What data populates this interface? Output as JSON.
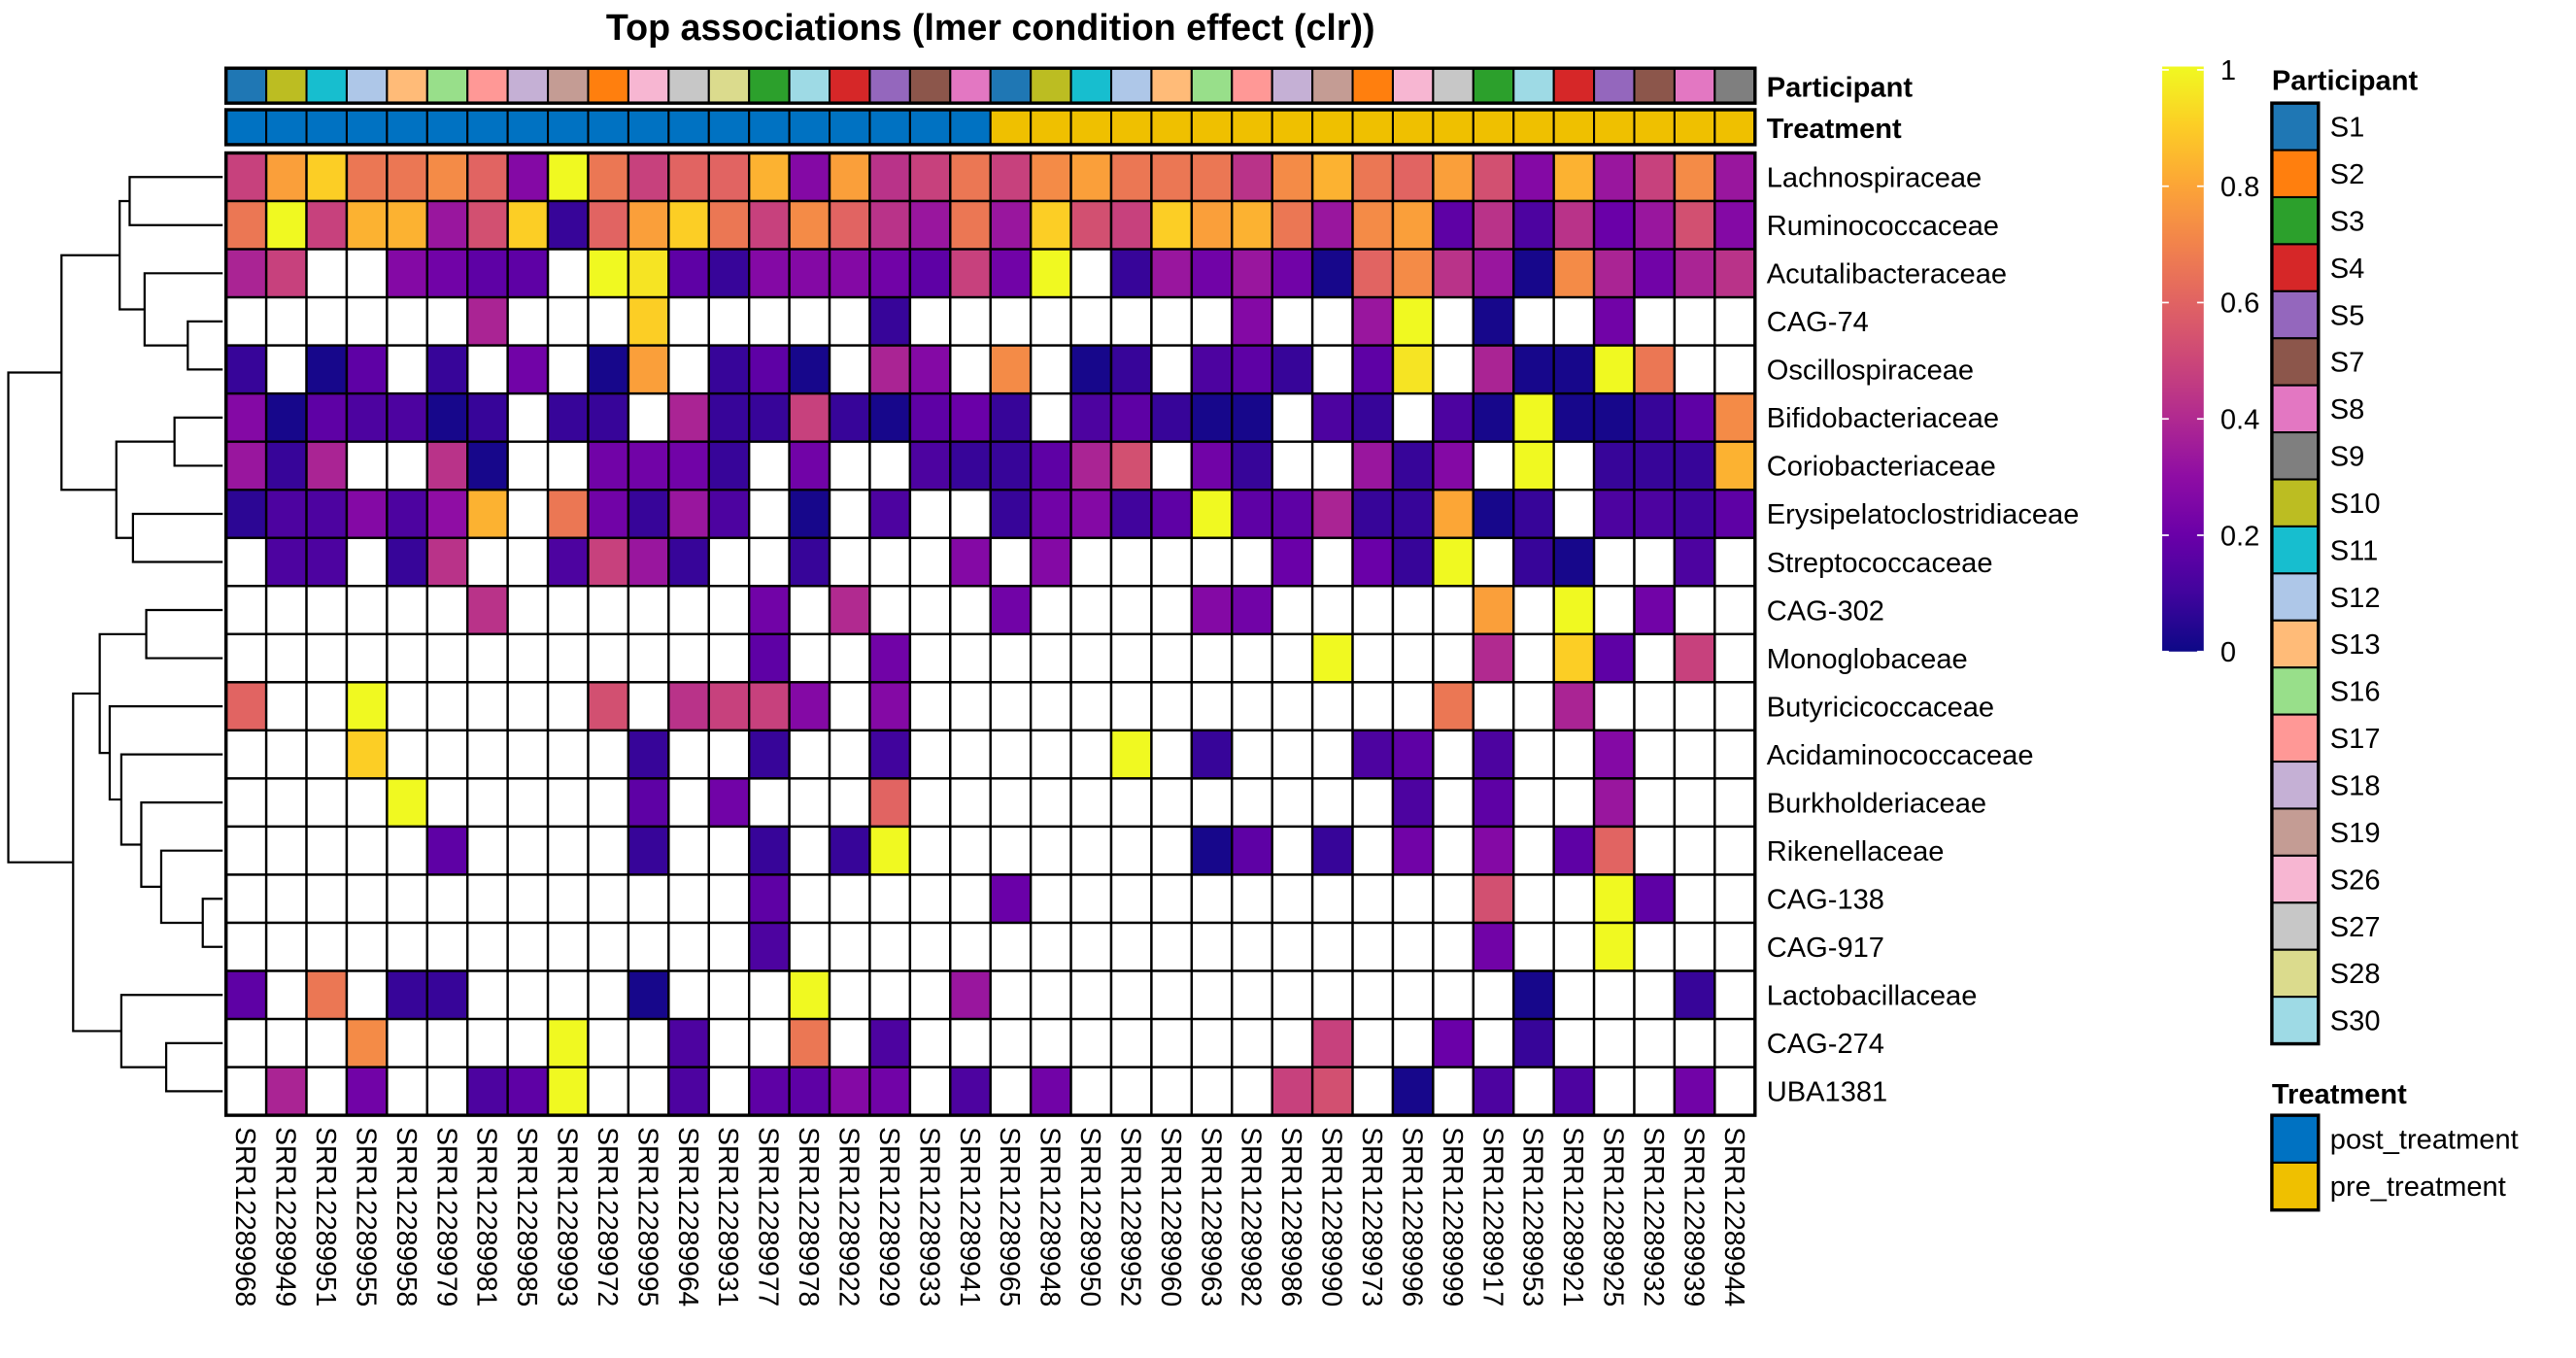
{
  "chart_data": {
    "type": "heatmap",
    "title": "Top associations (lmer condition effect (clr))",
    "annotation_labels": {
      "participant": "Participant",
      "treatment": "Treatment"
    },
    "rows": [
      "Lachnospiraceae",
      "Ruminococcaceae",
      "Acutalibacteraceae",
      "CAG-74",
      "Oscillospiraceae",
      "Bifidobacteriaceae",
      "Coriobacteriaceae",
      "Erysipelatoclostridiaceae",
      "Streptococcaceae",
      "CAG-302",
      "Monoglobaceae",
      "Butyricicoccaceae",
      "Acidaminococcaceae",
      "Burkholderiaceae",
      "Rikenellaceae",
      "CAG-138",
      "CAG-917",
      "Lactobacillaceae",
      "CAG-274",
      "UBA1381"
    ],
    "columns": [
      "SRR12289968",
      "SRR12289949",
      "SRR12289951",
      "SRR12289955",
      "SRR12289958",
      "SRR12289979",
      "SRR12289981",
      "SRR12289985",
      "SRR12289993",
      "SRR12289972",
      "SRR12289995",
      "SRR12289964",
      "SRR12289931",
      "SRR12289977",
      "SRR12289978",
      "SRR12289922",
      "SRR12289929",
      "SRR12289933",
      "SRR12289941",
      "SRR12289965",
      "SRR12289948",
      "SRR12289950",
      "SRR12289952",
      "SRR12289960",
      "SRR12289963",
      "SRR12289982",
      "SRR12289986",
      "SRR12289990",
      "SRR12289973",
      "SRR12289996",
      "SRR12289999",
      "SRR12289917",
      "SRR12289953",
      "SRR12289921",
      "SRR12289925",
      "SRR12289932",
      "SRR12289939",
      "SRR12289944"
    ],
    "column_participant": [
      "S1",
      "S10",
      "S11",
      "S12",
      "S13",
      "S16",
      "S17",
      "S18",
      "S19",
      "S2",
      "S26",
      "S27",
      "S28",
      "S3",
      "S30",
      "S4",
      "S5",
      "S7",
      "S8",
      "S1",
      "S10",
      "S11",
      "S12",
      "S13",
      "S16",
      "S17",
      "S18",
      "S19",
      "S2",
      "S26",
      "S27",
      "S3",
      "S30",
      "S4",
      "S5",
      "S7",
      "S8",
      "S9"
    ],
    "column_treatment": [
      "post_treatment",
      "post_treatment",
      "post_treatment",
      "post_treatment",
      "post_treatment",
      "post_treatment",
      "post_treatment",
      "post_treatment",
      "post_treatment",
      "post_treatment",
      "post_treatment",
      "post_treatment",
      "post_treatment",
      "post_treatment",
      "post_treatment",
      "post_treatment",
      "post_treatment",
      "post_treatment",
      "post_treatment",
      "pre_treatment",
      "pre_treatment",
      "pre_treatment",
      "pre_treatment",
      "pre_treatment",
      "pre_treatment",
      "pre_treatment",
      "pre_treatment",
      "pre_treatment",
      "pre_treatment",
      "pre_treatment",
      "pre_treatment",
      "pre_treatment",
      "pre_treatment",
      "pre_treatment",
      "pre_treatment",
      "pre_treatment",
      "pre_treatment",
      "pre_treatment"
    ],
    "values": [
      [
        0.48,
        0.78,
        0.9,
        0.66,
        0.66,
        0.72,
        0.6,
        0.27,
        1.0,
        0.66,
        0.48,
        0.6,
        0.6,
        0.83,
        0.27,
        0.78,
        0.43,
        0.48,
        0.66,
        0.48,
        0.72,
        0.78,
        0.66,
        0.66,
        0.66,
        0.43,
        0.72,
        0.83,
        0.66,
        0.6,
        0.78,
        0.53,
        0.27,
        0.83,
        0.33,
        0.48,
        0.72,
        0.33
      ],
      [
        0.66,
        1.0,
        0.48,
        0.83,
        0.83,
        0.33,
        0.53,
        0.9,
        0.08,
        0.6,
        0.78,
        0.9,
        0.66,
        0.48,
        0.72,
        0.6,
        0.43,
        0.33,
        0.66,
        0.33,
        0.9,
        0.53,
        0.48,
        0.9,
        0.78,
        0.83,
        0.66,
        0.33,
        0.72,
        0.78,
        0.17,
        0.43,
        0.13,
        0.43,
        0.2,
        0.33,
        0.53,
        0.27
      ],
      [
        0.38,
        0.48,
        null,
        null,
        0.27,
        0.22,
        0.17,
        0.17,
        null,
        1.0,
        0.95,
        0.17,
        0.08,
        0.27,
        0.27,
        0.27,
        0.22,
        0.17,
        0.48,
        0.22,
        1.0,
        null,
        0.08,
        0.33,
        0.22,
        0.33,
        0.22,
        0.02,
        0.6,
        0.72,
        0.43,
        0.33,
        0.02,
        0.72,
        0.38,
        0.22,
        0.38,
        0.43
      ],
      [
        null,
        null,
        null,
        null,
        null,
        null,
        0.38,
        null,
        null,
        null,
        0.9,
        null,
        null,
        null,
        null,
        null,
        0.08,
        null,
        null,
        null,
        null,
        null,
        null,
        null,
        null,
        0.27,
        null,
        null,
        0.33,
        1.0,
        null,
        0.02,
        null,
        null,
        0.22,
        null,
        null,
        null
      ],
      [
        0.08,
        null,
        0.02,
        0.17,
        null,
        0.08,
        null,
        0.22,
        null,
        0.02,
        0.78,
        null,
        0.08,
        0.17,
        0.02,
        null,
        0.38,
        0.27,
        null,
        0.72,
        null,
        0.02,
        0.08,
        null,
        0.13,
        0.17,
        0.08,
        null,
        0.17,
        0.95,
        null,
        0.38,
        0.02,
        0.02,
        1.0,
        0.66,
        null,
        null
      ],
      [
        0.27,
        0.02,
        0.17,
        0.13,
        0.13,
        0.02,
        0.08,
        null,
        0.08,
        0.08,
        null,
        0.38,
        0.08,
        0.08,
        0.48,
        0.08,
        0.02,
        0.17,
        0.2,
        0.08,
        null,
        0.13,
        0.17,
        0.08,
        0.02,
        0.02,
        null,
        0.13,
        0.08,
        null,
        0.13,
        0.02,
        1.0,
        0.02,
        0.02,
        0.08,
        0.17,
        0.72
      ],
      [
        0.33,
        0.08,
        0.38,
        null,
        null,
        0.43,
        0.02,
        null,
        null,
        0.22,
        0.22,
        0.22,
        0.08,
        null,
        0.22,
        null,
        null,
        0.13,
        0.08,
        0.08,
        0.17,
        0.38,
        0.53,
        null,
        0.22,
        0.08,
        null,
        null,
        0.33,
        0.08,
        0.27,
        null,
        1.0,
        null,
        0.08,
        0.08,
        0.08,
        0.83
      ],
      [
        0.06,
        0.13,
        0.13,
        0.27,
        0.13,
        0.3,
        0.83,
        null,
        0.66,
        0.22,
        0.08,
        0.33,
        0.13,
        null,
        0.02,
        null,
        0.13,
        null,
        null,
        0.08,
        0.22,
        0.27,
        0.1,
        0.17,
        1.0,
        0.17,
        0.17,
        0.38,
        0.08,
        0.08,
        0.8,
        0.02,
        0.08,
        null,
        0.13,
        0.13,
        0.1,
        0.17
      ],
      [
        null,
        0.13,
        0.13,
        null,
        0.08,
        0.43,
        null,
        null,
        0.13,
        0.48,
        0.33,
        0.08,
        null,
        null,
        0.08,
        null,
        null,
        null,
        0.27,
        null,
        0.27,
        null,
        null,
        null,
        null,
        null,
        0.2,
        null,
        0.2,
        0.08,
        1.0,
        null,
        0.08,
        0.02,
        null,
        null,
        0.13,
        null
      ],
      [
        null,
        null,
        null,
        null,
        null,
        null,
        0.43,
        null,
        null,
        null,
        null,
        null,
        null,
        0.22,
        null,
        0.4,
        null,
        null,
        null,
        0.22,
        null,
        null,
        null,
        null,
        0.27,
        0.22,
        null,
        null,
        null,
        null,
        null,
        0.78,
        null,
        1.0,
        null,
        0.22,
        null,
        null
      ],
      [
        null,
        null,
        null,
        null,
        null,
        null,
        null,
        null,
        null,
        null,
        null,
        null,
        null,
        0.17,
        null,
        null,
        0.22,
        null,
        null,
        null,
        null,
        null,
        null,
        null,
        null,
        null,
        null,
        1.0,
        null,
        null,
        null,
        0.4,
        null,
        0.9,
        0.17,
        null,
        0.48,
        null
      ],
      [
        0.6,
        null,
        null,
        1.0,
        null,
        null,
        null,
        null,
        null,
        0.53,
        null,
        0.43,
        0.48,
        0.48,
        0.27,
        null,
        0.27,
        null,
        null,
        null,
        null,
        null,
        null,
        null,
        null,
        null,
        null,
        null,
        null,
        null,
        0.66,
        null,
        null,
        0.38,
        null,
        null,
        null,
        null
      ],
      [
        null,
        null,
        null,
        0.9,
        null,
        null,
        null,
        null,
        null,
        null,
        0.08,
        null,
        null,
        0.08,
        null,
        null,
        0.1,
        null,
        null,
        null,
        null,
        null,
        1.0,
        null,
        0.08,
        null,
        null,
        null,
        0.13,
        0.17,
        null,
        0.13,
        null,
        null,
        0.27,
        null,
        null,
        null
      ],
      [
        null,
        null,
        null,
        null,
        1.0,
        null,
        null,
        null,
        null,
        null,
        0.17,
        null,
        0.22,
        null,
        null,
        null,
        0.6,
        null,
        null,
        null,
        null,
        null,
        null,
        null,
        null,
        null,
        null,
        null,
        null,
        0.13,
        null,
        0.17,
        null,
        null,
        0.33,
        null,
        null,
        null
      ],
      [
        null,
        null,
        null,
        null,
        null,
        0.17,
        null,
        null,
        null,
        null,
        0.08,
        null,
        null,
        0.08,
        null,
        0.08,
        1.0,
        null,
        null,
        null,
        null,
        null,
        null,
        null,
        0.02,
        0.17,
        null,
        0.08,
        null,
        0.22,
        null,
        0.27,
        null,
        0.17,
        0.6,
        null,
        null,
        null
      ],
      [
        null,
        null,
        null,
        null,
        null,
        null,
        null,
        null,
        null,
        null,
        null,
        null,
        null,
        0.17,
        null,
        null,
        null,
        null,
        null,
        0.2,
        null,
        null,
        null,
        null,
        null,
        null,
        null,
        null,
        null,
        null,
        null,
        0.53,
        null,
        null,
        1.0,
        0.17,
        null,
        null
      ],
      [
        null,
        null,
        null,
        null,
        null,
        null,
        null,
        null,
        null,
        null,
        null,
        null,
        null,
        0.13,
        null,
        null,
        null,
        null,
        null,
        null,
        null,
        null,
        null,
        null,
        null,
        null,
        null,
        null,
        null,
        null,
        null,
        0.22,
        null,
        null,
        1.0,
        null,
        null,
        null
      ],
      [
        0.17,
        null,
        0.66,
        null,
        0.08,
        0.08,
        null,
        null,
        null,
        null,
        0.02,
        null,
        null,
        null,
        1.0,
        null,
        null,
        null,
        0.33,
        null,
        null,
        null,
        null,
        null,
        null,
        null,
        null,
        null,
        null,
        null,
        null,
        null,
        0.02,
        null,
        null,
        null,
        0.08,
        null
      ],
      [
        null,
        null,
        null,
        0.72,
        null,
        null,
        null,
        null,
        1.0,
        null,
        null,
        0.13,
        null,
        null,
        0.66,
        null,
        0.13,
        null,
        null,
        null,
        null,
        null,
        null,
        null,
        null,
        null,
        null,
        0.48,
        null,
        null,
        0.2,
        null,
        0.08,
        null,
        null,
        null,
        null,
        null
      ],
      [
        null,
        0.38,
        null,
        0.22,
        null,
        null,
        0.13,
        0.17,
        1.0,
        null,
        null,
        0.13,
        null,
        0.17,
        0.17,
        0.27,
        0.22,
        null,
        0.13,
        null,
        0.22,
        null,
        null,
        null,
        null,
        null,
        0.48,
        0.53,
        null,
        0.02,
        null,
        0.13,
        null,
        0.13,
        null,
        null,
        0.22,
        null
      ]
    ],
    "color_scale": {
      "name": "plasma",
      "range": [
        0,
        1
      ],
      "ticks": [
        "0",
        "0.2",
        "0.4",
        "0.6",
        "0.8",
        "1"
      ],
      "na_color": "#ffffff"
    },
    "legend_placement": "right"
  },
  "legends": {
    "participant": {
      "title": "Participant",
      "items": [
        {
          "label": "S1",
          "color": "#1f77b4"
        },
        {
          "label": "S2",
          "color": "#ff7f0e"
        },
        {
          "label": "S3",
          "color": "#2ca02c"
        },
        {
          "label": "S4",
          "color": "#d62728"
        },
        {
          "label": "S5",
          "color": "#9467bd"
        },
        {
          "label": "S7",
          "color": "#8c564b"
        },
        {
          "label": "S8",
          "color": "#e377c2"
        },
        {
          "label": "S9",
          "color": "#7f7f7f"
        },
        {
          "label": "S10",
          "color": "#bcbd22"
        },
        {
          "label": "S11",
          "color": "#17becf"
        },
        {
          "label": "S12",
          "color": "#aec7e8"
        },
        {
          "label": "S13",
          "color": "#ffbb78"
        },
        {
          "label": "S16",
          "color": "#98df8a"
        },
        {
          "label": "S17",
          "color": "#ff9896"
        },
        {
          "label": "S18",
          "color": "#c5b0d5"
        },
        {
          "label": "S19",
          "color": "#c49c94"
        },
        {
          "label": "S26",
          "color": "#f7b6d2"
        },
        {
          "label": "S27",
          "color": "#c7c7c7"
        },
        {
          "label": "S28",
          "color": "#dbdb8d"
        },
        {
          "label": "S30",
          "color": "#9edae5"
        }
      ]
    },
    "treatment": {
      "title": "Treatment",
      "items": [
        {
          "label": "post_treatment",
          "color": "#0072c2"
        },
        {
          "label": "pre_treatment",
          "color": "#efc000"
        }
      ]
    }
  }
}
